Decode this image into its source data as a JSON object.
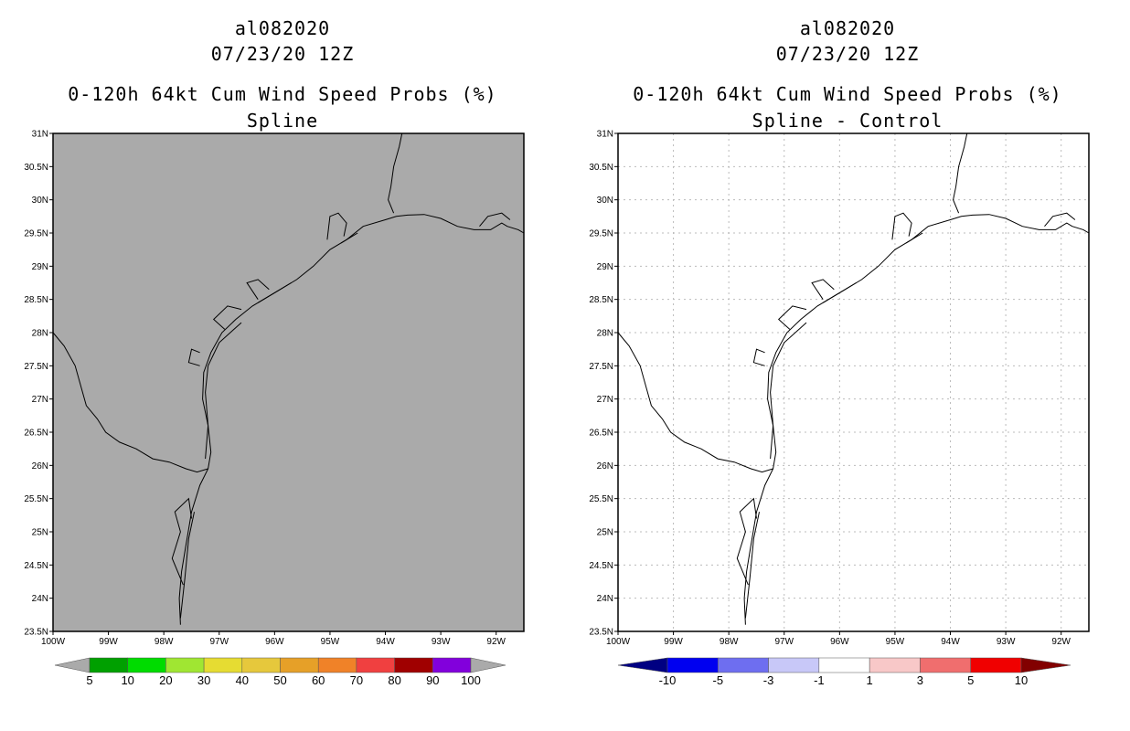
{
  "panels": [
    {
      "id": "left",
      "title_line1": "al082020",
      "title_line2": "07/23/20 12Z",
      "title_line3": "0-120h 64kt Cum Wind Speed Probs (%)",
      "title_line4": "Spline",
      "background": "#aaaaaa",
      "gridlines": false,
      "colorbar": {
        "labels": [
          "5",
          "10",
          "20",
          "30",
          "40",
          "50",
          "60",
          "70",
          "80",
          "90",
          "100"
        ],
        "colors": [
          "#aaaaaa",
          "#00a000",
          "#00dc00",
          "#a0e632",
          "#e6dc32",
          "#e6c83c",
          "#e6a028",
          "#f08228",
          "#f04040",
          "#a00000",
          "#8200dc",
          "#aaaaaa"
        ]
      }
    },
    {
      "id": "right",
      "title_line1": "al082020",
      "title_line2": "07/23/20 12Z",
      "title_line3": "0-120h 64kt Cum Wind Speed Probs (%)",
      "title_line4": "Spline - Control",
      "background": "#ffffff",
      "gridlines": true,
      "colorbar": {
        "labels": [
          "-10",
          "-5",
          "-3",
          "-1",
          "1",
          "3",
          "5",
          "10"
        ],
        "colors": [
          "#000082",
          "#0000f0",
          "#6e6ef0",
          "#c8c8f8",
          "#ffffff",
          "#f8c8c8",
          "#f06e6e",
          "#f00000",
          "#820000"
        ]
      }
    }
  ],
  "chart_data": [
    {
      "type": "heatmap",
      "title": "0-120h 64kt Cum Wind Speed Probs (%) - Spline",
      "xlim": [
        -100,
        -91.5
      ],
      "ylim": [
        23.5,
        31
      ],
      "x_ticks": [
        "100W",
        "99W",
        "98W",
        "97W",
        "96W",
        "95W",
        "94W",
        "93W",
        "92W"
      ],
      "y_ticks": [
        "23.5N",
        "24N",
        "24.5N",
        "25N",
        "25.5N",
        "26N",
        "26.5N",
        "27N",
        "27.5N",
        "28N",
        "28.5N",
        "29N",
        "29.5N",
        "30N",
        "30.5N",
        "31N"
      ],
      "values": "all below 5% (uniform gray field)"
    },
    {
      "type": "heatmap",
      "title": "0-120h 64kt Cum Wind Speed Probs (%) - Spline - Control",
      "xlim": [
        -100,
        -91.5
      ],
      "ylim": [
        23.5,
        31
      ],
      "x_ticks": [
        "100W",
        "99W",
        "98W",
        "97W",
        "96W",
        "95W",
        "94W",
        "93W",
        "92W"
      ],
      "y_ticks": [
        "23.5N",
        "24N",
        "24.5N",
        "25N",
        "25.5N",
        "26N",
        "26.5N",
        "27N",
        "27.5N",
        "28N",
        "28.5N",
        "29N",
        "29.5N",
        "30N",
        "30.5N",
        "31N"
      ],
      "values": "difference between -1 and 1 everywhere (white field)"
    }
  ],
  "coastline": {
    "gulf_coast": [
      [
        -97.7,
        23.6
      ],
      [
        -97.72,
        24.0
      ],
      [
        -97.68,
        24.4
      ],
      [
        -97.6,
        24.8
      ],
      [
        -97.5,
        25.3
      ],
      [
        -97.35,
        25.7
      ],
      [
        -97.2,
        25.95
      ],
      [
        -97.15,
        26.2
      ],
      [
        -97.2,
        26.6
      ],
      [
        -97.3,
        27.0
      ],
      [
        -97.28,
        27.4
      ],
      [
        -97.15,
        27.7
      ],
      [
        -96.95,
        28.0
      ],
      [
        -96.7,
        28.2
      ],
      [
        -96.4,
        28.4
      ],
      [
        -96.0,
        28.6
      ],
      [
        -95.6,
        28.8
      ],
      [
        -95.3,
        29.0
      ],
      [
        -95.0,
        29.25
      ],
      [
        -94.7,
        29.4
      ],
      [
        -94.4,
        29.6
      ],
      [
        -94.0,
        29.7
      ],
      [
        -93.8,
        29.75
      ],
      [
        -93.6,
        29.77
      ],
      [
        -93.3,
        29.78
      ],
      [
        -93.0,
        29.72
      ],
      [
        -92.7,
        29.6
      ],
      [
        -92.4,
        29.55
      ],
      [
        -92.1,
        29.55
      ],
      [
        -91.9,
        29.65
      ],
      [
        -91.8,
        29.6
      ],
      [
        -91.6,
        29.55
      ],
      [
        -91.5,
        29.5
      ]
    ],
    "barrier_islands": [
      [
        [
          -97.7,
          23.7
        ],
        [
          -97.62,
          24.3
        ],
        [
          -97.55,
          24.9
        ],
        [
          -97.45,
          25.3
        ]
      ],
      [
        [
          -97.25,
          26.1
        ],
        [
          -97.2,
          26.6
        ],
        [
          -97.25,
          27.1
        ],
        [
          -97.2,
          27.5
        ],
        [
          -97.0,
          27.85
        ],
        [
          -96.6,
          28.15
        ]
      ],
      [
        [
          -96.3,
          28.45
        ],
        [
          -95.7,
          28.75
        ]
      ],
      [
        [
          -94.8,
          29.35
        ],
        [
          -94.5,
          29.5
        ]
      ]
    ],
    "bays": [
      [
        [
          -97.65,
          24.2
        ],
        [
          -97.85,
          24.6
        ],
        [
          -97.7,
          25.0
        ],
        [
          -97.8,
          25.3
        ],
        [
          -97.55,
          25.5
        ],
        [
          -97.5,
          25.2
        ]
      ],
      [
        [
          -97.35,
          27.5
        ],
        [
          -97.55,
          27.55
        ],
        [
          -97.5,
          27.75
        ],
        [
          -97.35,
          27.7
        ]
      ],
      [
        [
          -96.9,
          28.05
        ],
        [
          -97.1,
          28.2
        ],
        [
          -96.85,
          28.4
        ],
        [
          -96.6,
          28.35
        ]
      ],
      [
        [
          -96.3,
          28.5
        ],
        [
          -96.5,
          28.75
        ],
        [
          -96.3,
          28.8
        ],
        [
          -96.1,
          28.65
        ]
      ],
      [
        [
          -95.05,
          29.4
        ],
        [
          -95.0,
          29.75
        ],
        [
          -94.85,
          29.8
        ],
        [
          -94.7,
          29.65
        ],
        [
          -94.75,
          29.45
        ]
      ],
      [
        [
          -92.3,
          29.6
        ],
        [
          -92.15,
          29.75
        ],
        [
          -91.9,
          29.8
        ],
        [
          -91.75,
          29.7
        ]
      ]
    ],
    "rio_grande": [
      [
        -100.0,
        28.0
      ],
      [
        -99.8,
        27.8
      ],
      [
        -99.6,
        27.5
      ],
      [
        -99.5,
        27.2
      ],
      [
        -99.4,
        26.9
      ],
      [
        -99.2,
        26.7
      ],
      [
        -99.05,
        26.5
      ],
      [
        -98.8,
        26.35
      ],
      [
        -98.5,
        26.25
      ],
      [
        -98.2,
        26.1
      ],
      [
        -97.9,
        26.05
      ],
      [
        -97.6,
        25.95
      ],
      [
        -97.4,
        25.9
      ],
      [
        -97.2,
        25.95
      ]
    ],
    "sabine_river": [
      [
        -93.7,
        31.0
      ],
      [
        -93.75,
        30.8
      ],
      [
        -93.85,
        30.5
      ],
      [
        -93.9,
        30.2
      ],
      [
        -93.95,
        30.0
      ],
      [
        -93.85,
        29.8
      ]
    ]
  }
}
